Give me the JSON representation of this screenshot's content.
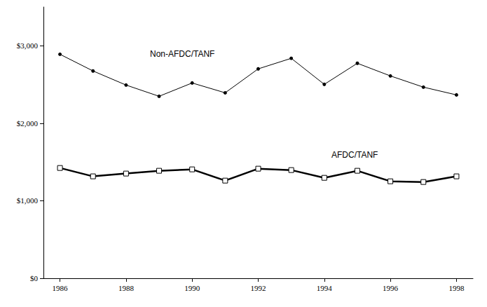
{
  "chart_data": {
    "type": "line",
    "x": [
      1986,
      1987,
      1988,
      1989,
      1990,
      1991,
      1992,
      1993,
      1994,
      1995,
      1996,
      1997,
      1998
    ],
    "series": [
      {
        "name": "Non-AFDC/TANF",
        "color": "#000000",
        "marker": "circle",
        "line_style": "solid",
        "values": [
          2890,
          2675,
          2493,
          2348,
          2520,
          2393,
          2702,
          2838,
          2502,
          2774,
          2611,
          2466,
          2366
        ]
      },
      {
        "name": "AFDC/TANF",
        "color": "#000000",
        "marker": "open_square",
        "line_style": "solid",
        "values": [
          1423,
          1315,
          1351,
          1387,
          1405,
          1260,
          1414,
          1396,
          1296,
          1387,
          1251,
          1242,
          1315
        ]
      }
    ],
    "xlim": [
      1985.5,
      1998.5
    ],
    "xticks": [
      1986,
      1988,
      1990,
      1992,
      1994,
      1996,
      1998
    ],
    "ylim": [
      0,
      3500
    ],
    "yticks": [
      {
        "value": 0,
        "label": "$0"
      },
      {
        "value": 1000,
        "label": "$1,000"
      },
      {
        "value": 2000,
        "label": "$2,000"
      },
      {
        "value": 3000,
        "label": "$3,000"
      }
    ],
    "grid": false
  }
}
